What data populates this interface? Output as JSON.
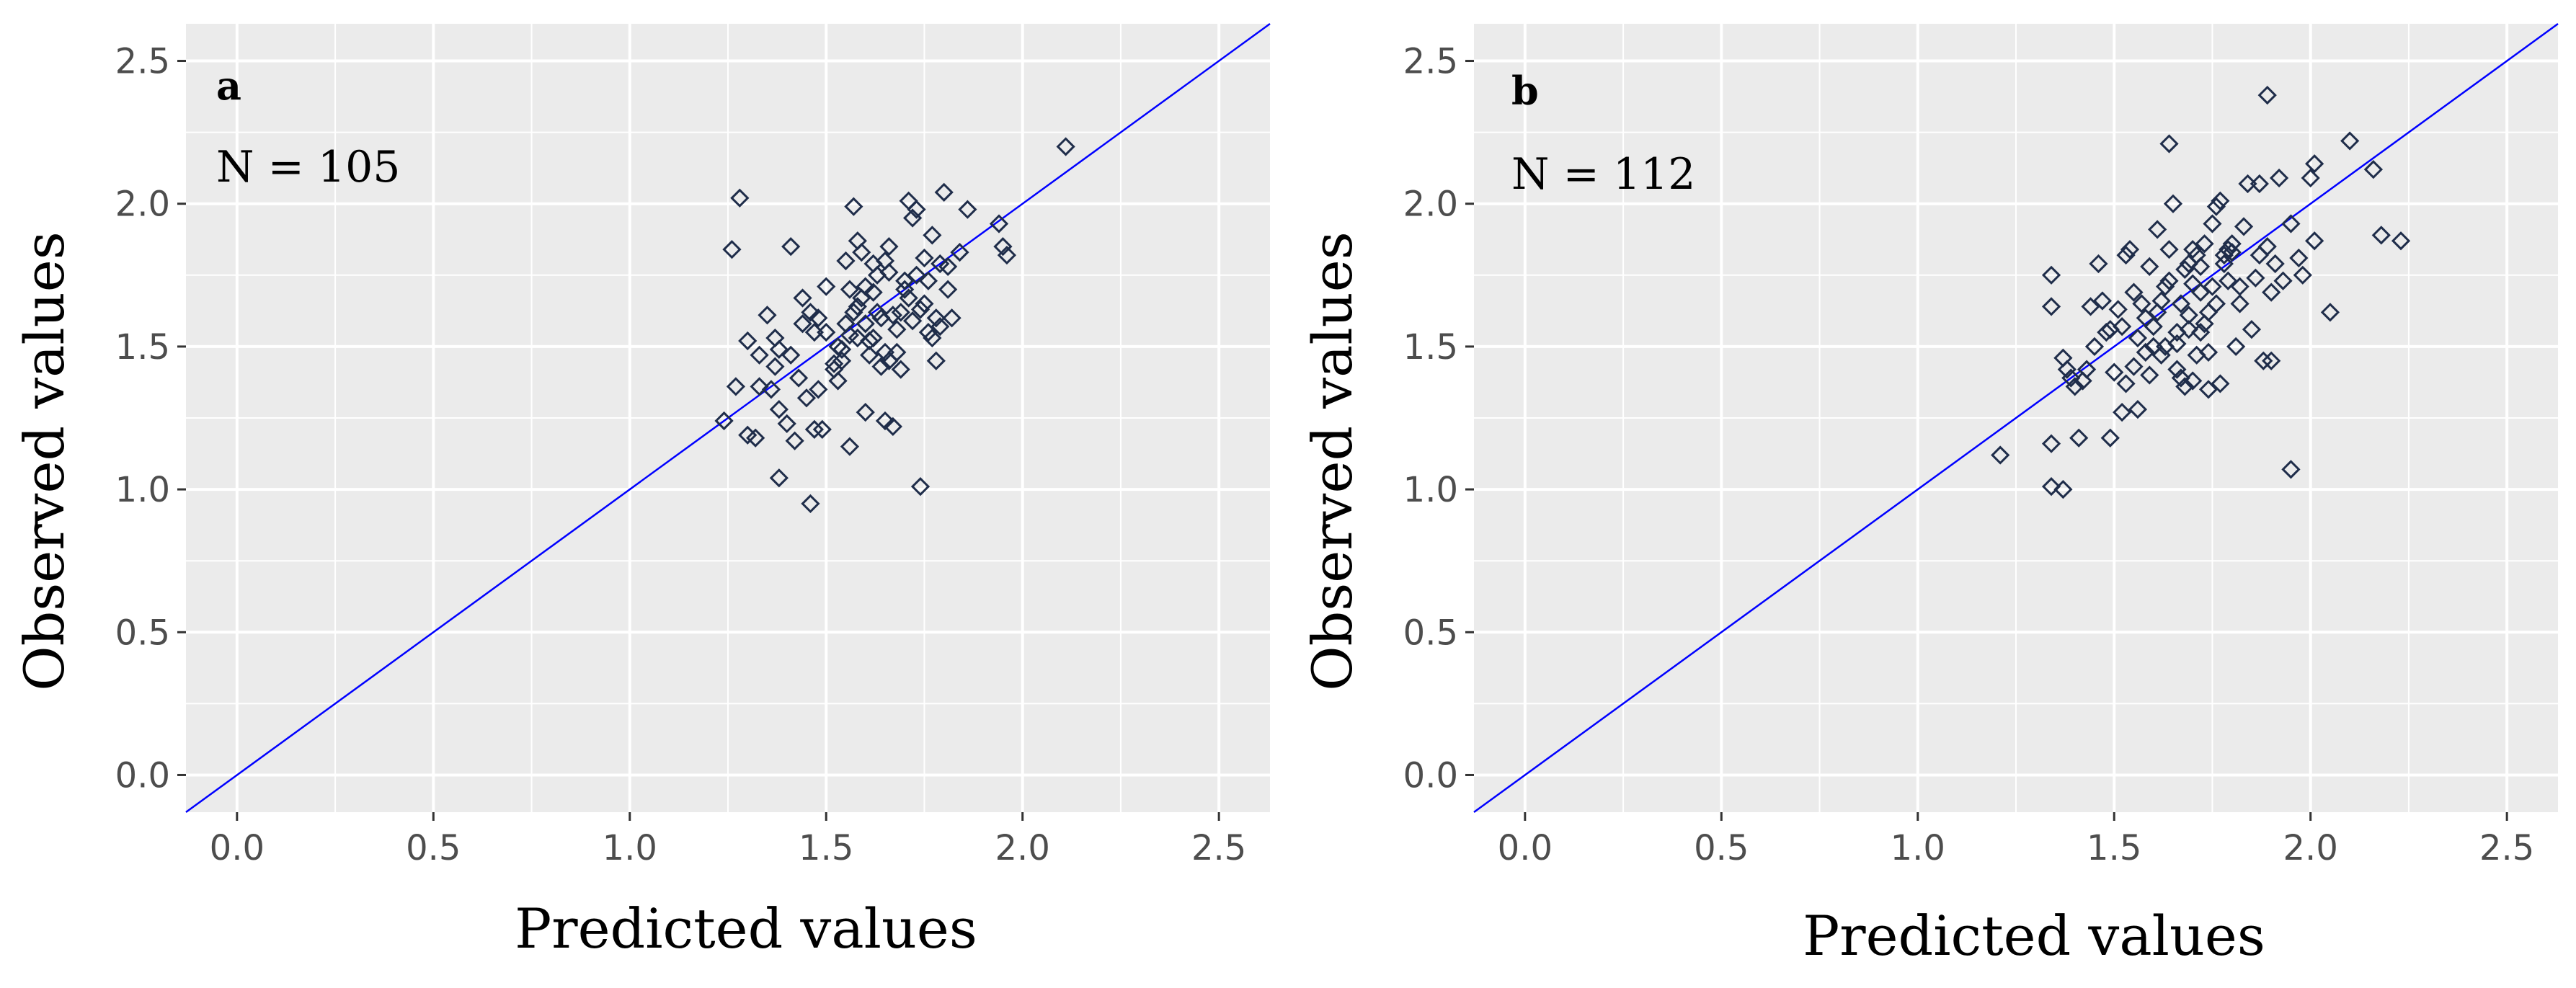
{
  "colors": {
    "panel_bg": "#ebebeb",
    "grid": "#ffffff",
    "point": "#1f2d4a",
    "reference_line": "#0000ff",
    "tick_text": "#4d4d4d"
  },
  "chart_data": [
    {
      "type": "scatter",
      "panel_label": "a",
      "n_label": "N = 105",
      "xlabel": "Predicted values",
      "ylabel": "Observed values",
      "xlim": [
        -0.13,
        2.63
      ],
      "ylim": [
        -0.13,
        2.63
      ],
      "ticks": [
        0.0,
        0.5,
        1.0,
        1.5,
        2.0,
        2.5
      ],
      "tick_labels": [
        "0.0",
        "0.5",
        "1.0",
        "1.5",
        "2.0",
        "2.5"
      ],
      "grid": true,
      "reference_line": "y = x",
      "points": [
        [
          1.28,
          2.02
        ],
        [
          1.26,
          1.84
        ],
        [
          1.41,
          1.85
        ],
        [
          2.11,
          2.2
        ],
        [
          1.24,
          1.24
        ],
        [
          1.27,
          1.36
        ],
        [
          1.3,
          1.52
        ],
        [
          1.33,
          1.47
        ],
        [
          1.35,
          1.61
        ],
        [
          1.37,
          1.53
        ],
        [
          1.38,
          1.49
        ],
        [
          1.36,
          1.35
        ],
        [
          1.38,
          1.28
        ],
        [
          1.33,
          1.36
        ],
        [
          1.4,
          1.23
        ],
        [
          1.42,
          1.17
        ],
        [
          1.43,
          1.39
        ],
        [
          1.44,
          1.67
        ],
        [
          1.46,
          1.62
        ],
        [
          1.47,
          1.55
        ],
        [
          1.45,
          1.32
        ],
        [
          1.47,
          1.21
        ],
        [
          1.49,
          1.21
        ],
        [
          1.5,
          1.71
        ],
        [
          1.52,
          1.42
        ],
        [
          1.53,
          1.38
        ],
        [
          1.54,
          1.49
        ],
        [
          1.55,
          1.8
        ],
        [
          1.56,
          1.54
        ],
        [
          1.57,
          1.99
        ],
        [
          1.58,
          1.87
        ],
        [
          1.58,
          1.64
        ],
        [
          1.59,
          1.67
        ],
        [
          1.6,
          1.58
        ],
        [
          1.61,
          1.52
        ],
        [
          1.62,
          1.69
        ],
        [
          1.63,
          1.75
        ],
        [
          1.64,
          1.43
        ],
        [
          1.65,
          1.8
        ],
        [
          1.66,
          1.85
        ],
        [
          1.67,
          1.61
        ],
        [
          1.68,
          1.48
        ],
        [
          1.69,
          1.42
        ],
        [
          1.7,
          1.73
        ],
        [
          1.71,
          2.01
        ],
        [
          1.72,
          1.95
        ],
        [
          1.73,
          1.75
        ],
        [
          1.74,
          1.63
        ],
        [
          1.75,
          1.81
        ],
        [
          1.76,
          1.55
        ],
        [
          1.77,
          1.89
        ],
        [
          1.78,
          1.6
        ],
        [
          1.79,
          1.79
        ],
        [
          1.8,
          2.04
        ],
        [
          1.81,
          1.7
        ],
        [
          1.82,
          1.6
        ],
        [
          1.84,
          1.83
        ],
        [
          1.86,
          1.98
        ],
        [
          1.94,
          1.93
        ],
        [
          1.96,
          1.82
        ],
        [
          1.95,
          1.85
        ],
        [
          1.38,
          1.04
        ],
        [
          1.46,
          0.95
        ],
        [
          1.74,
          1.01
        ],
        [
          1.56,
          1.15
        ],
        [
          1.6,
          1.27
        ],
        [
          1.65,
          1.24
        ],
        [
          1.67,
          1.22
        ],
        [
          1.52,
          1.44
        ],
        [
          1.58,
          1.53
        ],
        [
          1.62,
          1.53
        ],
        [
          1.63,
          1.62
        ],
        [
          1.66,
          1.45
        ],
        [
          1.69,
          1.62
        ],
        [
          1.72,
          1.59
        ],
        [
          1.75,
          1.65
        ],
        [
          1.77,
          1.53
        ],
        [
          1.79,
          1.57
        ],
        [
          1.7,
          1.7
        ],
        [
          1.73,
          1.98
        ],
        [
          1.76,
          1.73
        ],
        [
          1.81,
          1.78
        ],
        [
          1.61,
          1.47
        ],
        [
          1.55,
          1.58
        ],
        [
          1.54,
          1.45
        ],
        [
          1.57,
          1.62
        ],
        [
          1.64,
          1.6
        ],
        [
          1.66,
          1.76
        ],
        [
          1.68,
          1.56
        ],
        [
          1.71,
          1.67
        ],
        [
          1.48,
          1.6
        ],
        [
          1.44,
          1.58
        ],
        [
          1.41,
          1.47
        ],
        [
          1.5,
          1.55
        ],
        [
          1.53,
          1.5
        ],
        [
          1.56,
          1.7
        ],
        [
          1.59,
          1.83
        ],
        [
          1.62,
          1.79
        ],
        [
          1.6,
          1.71
        ],
        [
          1.65,
          1.48
        ],
        [
          1.48,
          1.35
        ],
        [
          1.37,
          1.43
        ],
        [
          1.32,
          1.18
        ],
        [
          1.3,
          1.19
        ],
        [
          1.78,
          1.45
        ]
      ]
    },
    {
      "type": "scatter",
      "panel_label": "b",
      "n_label": "N = 112",
      "xlabel": "Predicted values",
      "ylabel": "Observed values",
      "xlim": [
        -0.13,
        2.63
      ],
      "ylim": [
        -0.13,
        2.63
      ],
      "ticks": [
        0.0,
        0.5,
        1.0,
        1.5,
        2.0,
        2.5
      ],
      "tick_labels": [
        "0.0",
        "0.5",
        "1.0",
        "1.5",
        "2.0",
        "2.5"
      ],
      "grid": true,
      "reference_line": "y = x",
      "points": [
        [
          1.89,
          2.38
        ],
        [
          1.64,
          2.21
        ],
        [
          2.1,
          2.22
        ],
        [
          2.01,
          2.14
        ],
        [
          2.16,
          2.12
        ],
        [
          2.18,
          1.89
        ],
        [
          2.23,
          1.87
        ],
        [
          2.05,
          1.62
        ],
        [
          1.95,
          1.07
        ],
        [
          1.21,
          1.12
        ],
        [
          1.34,
          1.01
        ],
        [
          1.37,
          1.0
        ],
        [
          1.34,
          1.16
        ],
        [
          1.41,
          1.18
        ],
        [
          1.34,
          1.64
        ],
        [
          1.34,
          1.75
        ],
        [
          1.37,
          1.46
        ],
        [
          1.39,
          1.39
        ],
        [
          1.42,
          1.38
        ],
        [
          1.44,
          1.64
        ],
        [
          1.46,
          1.79
        ],
        [
          1.48,
          1.55
        ],
        [
          1.49,
          1.18
        ],
        [
          1.5,
          1.41
        ],
        [
          1.51,
          1.63
        ],
        [
          1.52,
          1.27
        ],
        [
          1.53,
          1.82
        ],
        [
          1.54,
          1.84
        ],
        [
          1.55,
          1.69
        ],
        [
          1.56,
          1.53
        ],
        [
          1.57,
          1.65
        ],
        [
          1.58,
          1.48
        ],
        [
          1.59,
          1.78
        ],
        [
          1.6,
          1.5
        ],
        [
          1.61,
          1.91
        ],
        [
          1.62,
          1.66
        ],
        [
          1.63,
          1.71
        ],
        [
          1.64,
          1.84
        ],
        [
          1.65,
          2.0
        ],
        [
          1.66,
          1.55
        ],
        [
          1.67,
          1.39
        ],
        [
          1.68,
          1.77
        ],
        [
          1.69,
          1.61
        ],
        [
          1.7,
          1.72
        ],
        [
          1.71,
          1.82
        ],
        [
          1.72,
          1.69
        ],
        [
          1.73,
          1.58
        ],
        [
          1.74,
          1.48
        ],
        [
          1.75,
          1.93
        ],
        [
          1.76,
          1.99
        ],
        [
          1.77,
          2.01
        ],
        [
          1.78,
          1.82
        ],
        [
          1.79,
          1.84
        ],
        [
          1.8,
          1.86
        ],
        [
          1.81,
          1.5
        ],
        [
          1.82,
          1.65
        ],
        [
          1.83,
          1.92
        ],
        [
          1.84,
          2.07
        ],
        [
          1.85,
          1.56
        ],
        [
          1.87,
          2.07
        ],
        [
          1.88,
          1.45
        ],
        [
          1.89,
          1.85
        ],
        [
          1.9,
          1.45
        ],
        [
          1.91,
          1.79
        ],
        [
          1.92,
          2.09
        ],
        [
          1.93,
          1.73
        ],
        [
          1.95,
          1.93
        ],
        [
          1.97,
          1.81
        ],
        [
          1.98,
          1.75
        ],
        [
          2.0,
          2.09
        ],
        [
          2.01,
          1.87
        ],
        [
          1.56,
          1.28
        ],
        [
          1.59,
          1.4
        ],
        [
          1.62,
          1.47
        ],
        [
          1.66,
          1.42
        ],
        [
          1.68,
          1.36
        ],
        [
          1.7,
          1.38
        ],
        [
          1.72,
          1.55
        ],
        [
          1.74,
          1.35
        ],
        [
          1.77,
          1.37
        ],
        [
          1.79,
          1.73
        ],
        [
          1.71,
          1.47
        ],
        [
          1.69,
          1.79
        ],
        [
          1.73,
          1.86
        ],
        [
          1.75,
          1.71
        ],
        [
          1.64,
          1.73
        ],
        [
          1.61,
          1.62
        ],
        [
          1.58,
          1.6
        ],
        [
          1.55,
          1.43
        ],
        [
          1.52,
          1.57
        ],
        [
          1.49,
          1.56
        ],
        [
          1.47,
          1.66
        ],
        [
          1.45,
          1.5
        ],
        [
          1.43,
          1.42
        ],
        [
          1.4,
          1.36
        ],
        [
          1.38,
          1.42
        ],
        [
          1.63,
          1.5
        ],
        [
          1.67,
          1.65
        ],
        [
          1.7,
          1.84
        ],
        [
          1.72,
          1.78
        ],
        [
          1.76,
          1.65
        ],
        [
          1.78,
          1.79
        ],
        [
          1.8,
          1.83
        ],
        [
          1.82,
          1.71
        ],
        [
          1.86,
          1.74
        ],
        [
          1.87,
          1.82
        ],
        [
          1.9,
          1.69
        ],
        [
          1.53,
          1.37
        ],
        [
          1.66,
          1.51
        ],
        [
          1.69,
          1.56
        ],
        [
          1.74,
          1.62
        ],
        [
          1.6,
          1.57
        ]
      ]
    }
  ]
}
